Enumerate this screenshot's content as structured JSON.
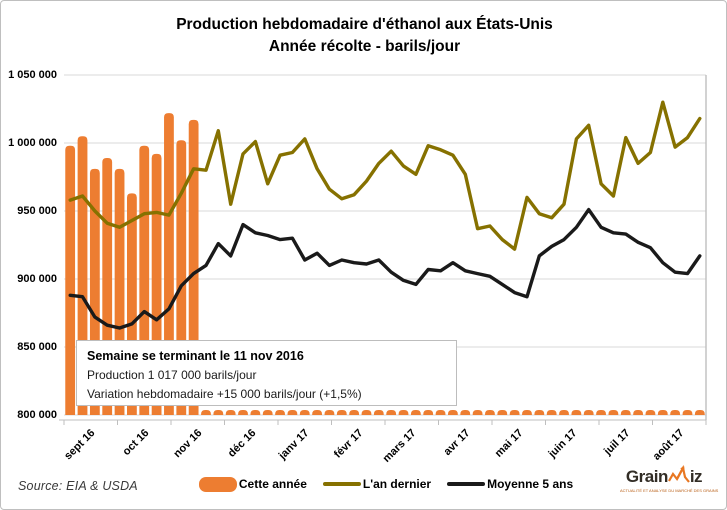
{
  "title": {
    "line1": "Production hebdomadaire d'éthanol aux États-Unis",
    "line2": "Année récolte - barils/jour"
  },
  "info_box": {
    "line1": "Semaine se terminant le 11 nov 2016",
    "line2": "Production 1 017 000 barils/jour",
    "line3": "Variation hebdomadaire  +15 000 barils/jour (+1,5%)"
  },
  "source_label": "Source: EIA & USDA",
  "logo": {
    "part1": "Grain",
    "part2": "iz",
    "tagline": "ACTUALITÉ ET ANALYSE DU MARCHÉ DES GRAINS"
  },
  "colors": {
    "bar_orange": "#ED7D31",
    "line_olive": "#867100",
    "line_black": "#1A1A1A",
    "grid": "#D9D9D9",
    "axis": "#BFBFBF"
  },
  "chart_data": {
    "type": "bar",
    "title": "Production hebdomadaire d'éthanol aux États-Unis — Année récolte - barils/jour",
    "ylabel": "barils/jour",
    "ylim": [
      800000,
      1050000
    ],
    "ytick_step": 50000,
    "ytick_labels": [
      "1 050 000",
      "1 000 000",
      "950 000",
      "900 000",
      "850 000",
      "800 000"
    ],
    "x_months": [
      "sept 16",
      "oct 16",
      "nov 16",
      "déc 16",
      "janv 17",
      "févr 17",
      "mars 17",
      "avr 17",
      "mai 17",
      "juin 17",
      "juil 17",
      "août 17"
    ],
    "weeks_total": 52,
    "grid": true,
    "legend_position": "bottom",
    "series": [
      {
        "name": "Cette année",
        "type": "bar",
        "color": "#ED7D31",
        "values": [
          998000,
          1005000,
          981000,
          989000,
          981000,
          963000,
          998000,
          992000,
          1022000,
          1002000,
          1017000
        ],
        "note": "weeks 12-52 shown as empty baseline stubs"
      },
      {
        "name": "L'an dernier",
        "type": "line",
        "color": "#867100",
        "values": [
          958000,
          961000,
          950000,
          941000,
          938000,
          943000,
          948000,
          949000,
          947000,
          963000,
          981000,
          980000,
          1009000,
          955000,
          992000,
          1001000,
          970000,
          991000,
          993000,
          1003000,
          981000,
          966000,
          959000,
          962000,
          972000,
          985000,
          994000,
          983000,
          977000,
          998000,
          995000,
          991000,
          977000,
          937000,
          939000,
          929000,
          922000,
          960000,
          948000,
          945000,
          955000,
          1003000,
          1013000,
          970000,
          961000,
          1004000,
          985000,
          993000,
          1030000,
          997000,
          1004000,
          1018000
        ]
      },
      {
        "name": "Moyenne 5 ans",
        "type": "line",
        "color": "#1A1A1A",
        "values": [
          888000,
          887000,
          872000,
          866000,
          864000,
          867000,
          876000,
          870000,
          878000,
          895000,
          904000,
          910000,
          926000,
          917000,
          940000,
          934000,
          932000,
          929000,
          930000,
          914000,
          919000,
          910000,
          914000,
          912000,
          911000,
          914000,
          905000,
          899000,
          896000,
          907000,
          906000,
          912000,
          906000,
          904000,
          902000,
          896000,
          890000,
          887000,
          917000,
          924000,
          929000,
          938000,
          951000,
          938000,
          934000,
          933000,
          927000,
          923000,
          912000,
          905000,
          904000,
          917000
        ]
      }
    ]
  }
}
